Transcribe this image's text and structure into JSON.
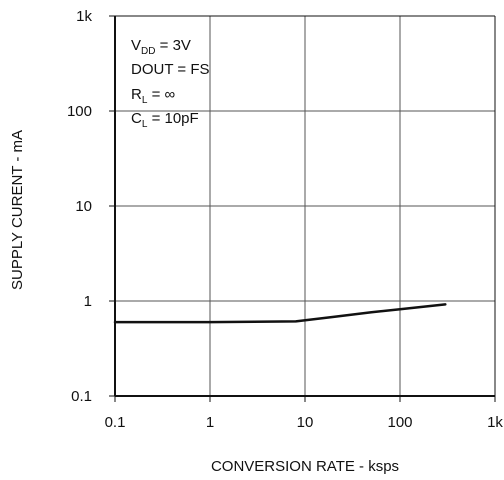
{
  "chart_data": {
    "type": "line",
    "title": "",
    "xlabel": "CONVERSION RATE - ksps",
    "ylabel": "SUPPLY CURENT - mA",
    "x_scale": "log",
    "y_scale": "log",
    "xlim": [
      0.1,
      1000
    ],
    "ylim": [
      0.1,
      1000
    ],
    "x_ticks": [
      0.1,
      1,
      10,
      100,
      1000
    ],
    "x_tick_labels": [
      "0.1",
      "1",
      "10",
      "100",
      "1k"
    ],
    "y_ticks": [
      0.1,
      1,
      10,
      100,
      1000
    ],
    "y_tick_labels": [
      "0.1",
      "1",
      "10",
      "100",
      "1k"
    ],
    "grid": true,
    "series": [
      {
        "x": [
          0.1,
          1,
          8,
          20,
          50,
          100,
          300
        ],
        "y": [
          0.6,
          0.6,
          0.61,
          0.68,
          0.76,
          0.82,
          0.92
        ],
        "color": "#111111"
      }
    ],
    "annotations": {
      "vdd": {
        "main": "V",
        "sub": "DD",
        "rest": " = 3V"
      },
      "dout": "DOUT = FS",
      "rl": {
        "main": "R",
        "sub": "L",
        "rest": " = ∞"
      },
      "cl": {
        "main": "C",
        "sub": "L",
        "rest": " = 10pF"
      }
    },
    "annotation_placement": "top-left"
  }
}
